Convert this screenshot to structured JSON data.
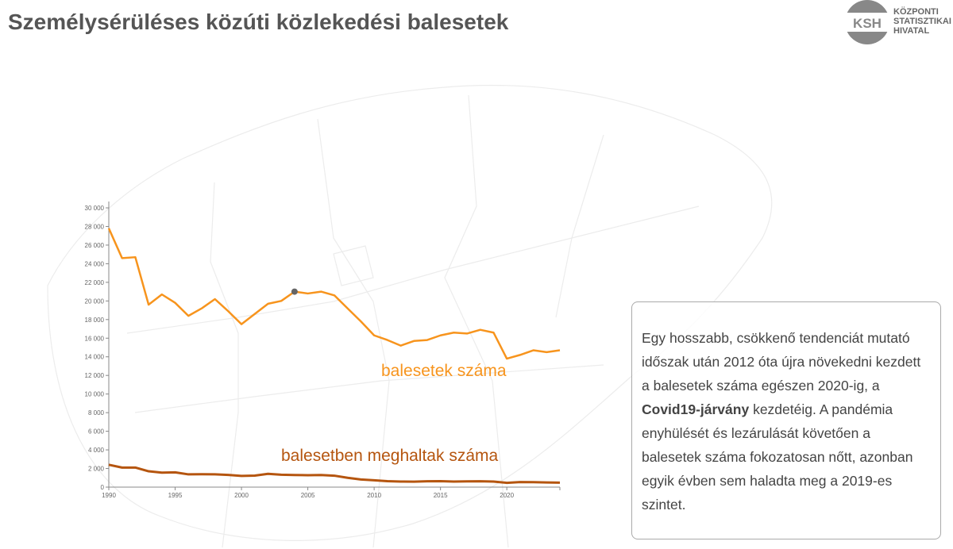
{
  "title": "Személysérüléses közúti közlekedési balesetek",
  "logo": {
    "mark": "KSH",
    "lines": [
      "KÖZPONTI",
      "STATISZTIKAI",
      "HIVATAL"
    ]
  },
  "textbox": {
    "p1": "Egy hosszabb, csökkenő tendenciát mutató időszak után 2012 óta újra növekedni kezdett a balesetek száma egészen 2020-ig, a ",
    "bold": "Covid19-járvány",
    "p2": " kezdetéig. A pandémia enyhülését és lezárulását követően a balesetek száma fokozatosan nőtt, azonban egyik évben sem haladta meg a 2019-es szintet."
  },
  "chart_data": {
    "type": "line",
    "title": "Személysérüléses közúti közlekedési balesetek",
    "xlim": [
      1990,
      2024
    ],
    "ylim": [
      0,
      30000
    ],
    "xticks": [
      1990,
      1995,
      2000,
      2005,
      2010,
      2015,
      2020
    ],
    "yticks": [
      0,
      2000,
      4000,
      6000,
      8000,
      10000,
      12000,
      14000,
      16000,
      18000,
      20000,
      22000,
      24000,
      26000,
      28000,
      30000
    ],
    "ytick_labels": [
      "0",
      "2 000",
      "4 000",
      "6 000",
      "8 000",
      "10 000",
      "12 000",
      "14 000",
      "16 000",
      "18 000",
      "20 000",
      "22 000",
      "24 000",
      "26 000",
      "28 000",
      "30 000"
    ],
    "x": [
      1990,
      1991,
      1992,
      1993,
      1994,
      1995,
      1996,
      1997,
      1998,
      1999,
      2000,
      2001,
      2002,
      2003,
      2004,
      2005,
      2006,
      2007,
      2008,
      2009,
      2010,
      2011,
      2012,
      2013,
      2014,
      2015,
      2016,
      2017,
      2018,
      2019,
      2020,
      2021,
      2022,
      2023,
      2024
    ],
    "highlight": {
      "x": 2004,
      "y": 21000,
      "color": "#666666"
    },
    "series": [
      {
        "name": "balesetek száma",
        "color": "#f7941d",
        "values": [
          27800,
          24600,
          24700,
          19600,
          20700,
          19800,
          18400,
          19200,
          20200,
          18900,
          17500,
          18600,
          19700,
          20000,
          21000,
          20800,
          21000,
          20600,
          19200,
          17800,
          16300,
          15800,
          15200,
          15700,
          15800,
          16300,
          16600,
          16500,
          16900,
          16600,
          13800,
          14200,
          14700,
          14500,
          14700
        ]
      },
      {
        "name": "balesetben meghaltak száma",
        "color": "#b5550f",
        "values": [
          2400,
          2100,
          2100,
          1700,
          1560,
          1590,
          1370,
          1390,
          1370,
          1310,
          1200,
          1240,
          1430,
          1330,
          1300,
          1280,
          1300,
          1230,
          1000,
          820,
          740,
          640,
          600,
          590,
          630,
          640,
          600,
          620,
          630,
          600,
          460,
          540,
          530,
          500,
          480
        ]
      }
    ]
  }
}
